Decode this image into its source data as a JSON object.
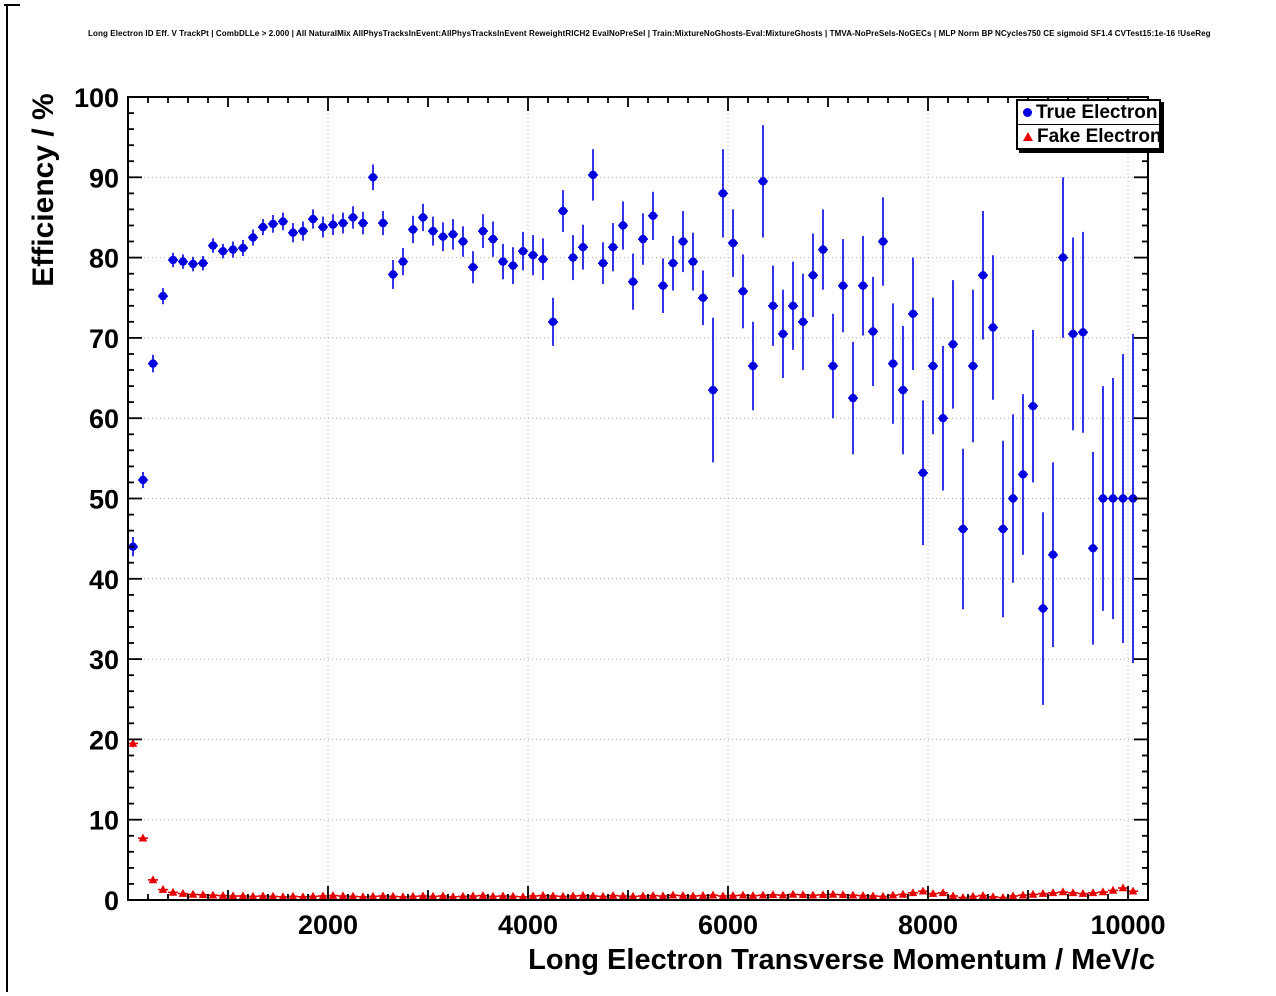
{
  "chart_data": {
    "type": "scatter",
    "title": "Long Electron ID Eff. V TrackPt | CombDLLe > 2.000 | All NaturalMix AllPhysTracksInEvent:AllPhysTracksInEvent ReweightRICH2 EvalNoPreSel | Train:MixtureNoGhosts-Eval:MixtureGhosts | TMVA-NoPreSels-NoGECs | MLP Norm BP NCycles750 CE sigmoid SF1.4 CVTest15:1e-16 !UseReg",
    "xlabel": "Long Electron Transverse Momentum / MeV/c",
    "ylabel": "Efficiency / %",
    "xlim": [
      0,
      10200
    ],
    "ylim": [
      0,
      100
    ],
    "grid": true,
    "legend_position": "top-right",
    "x_tick_values": [
      2000,
      4000,
      6000,
      8000,
      10000
    ],
    "x_tick_labels": [
      "2000",
      "4000",
      "6000",
      "8000",
      "10000"
    ],
    "x_minor_step": 200,
    "x_medium_step": 1000,
    "x_major_step": 2000,
    "y_tick_values": [
      0,
      10,
      20,
      30,
      40,
      50,
      60,
      70,
      80,
      90,
      100
    ],
    "y_tick_labels": [
      "0",
      "10",
      "20",
      "30",
      "40",
      "50",
      "60",
      "70",
      "80",
      "90",
      "100"
    ],
    "y_minor_step": 2,
    "series": [
      {
        "name": "True Electron",
        "marker": "circle",
        "color": "#0000e0",
        "ex": 50,
        "x": [
          50,
          150,
          250,
          350,
          450,
          550,
          650,
          750,
          850,
          950,
          1050,
          1150,
          1250,
          1350,
          1450,
          1550,
          1650,
          1750,
          1850,
          1950,
          2050,
          2150,
          2250,
          2350,
          2450,
          2550,
          2650,
          2750,
          2850,
          2950,
          3050,
          3150,
          3250,
          3350,
          3450,
          3550,
          3650,
          3750,
          3850,
          3950,
          4050,
          4150,
          4250,
          4350,
          4450,
          4550,
          4650,
          4750,
          4850,
          4950,
          5050,
          5150,
          5250,
          5350,
          5450,
          5550,
          5650,
          5750,
          5850,
          5950,
          6050,
          6150,
          6250,
          6350,
          6450,
          6550,
          6650,
          6750,
          6850,
          6950,
          7050,
          7150,
          7250,
          7350,
          7450,
          7550,
          7650,
          7750,
          7850,
          7950,
          8050,
          8150,
          8250,
          8350,
          8450,
          8550,
          8650,
          8750,
          8850,
          8950,
          9050,
          9150,
          9250,
          9350,
          9450,
          9550,
          9650,
          9750,
          9850,
          9950,
          10050
        ],
        "y": [
          44.0,
          52.3,
          66.8,
          75.2,
          79.7,
          79.5,
          79.2,
          79.3,
          81.5,
          80.8,
          81.0,
          81.2,
          82.5,
          83.8,
          84.2,
          84.5,
          83.1,
          83.3,
          84.8,
          83.8,
          84.1,
          84.3,
          85.0,
          84.3,
          90.0,
          84.3,
          77.9,
          79.5,
          83.5,
          85.0,
          83.3,
          82.6,
          82.9,
          82.0,
          78.8,
          83.3,
          82.3,
          79.5,
          79.0,
          80.8,
          80.3,
          79.8,
          72.0,
          85.8,
          80.0,
          81.3,
          90.3,
          79.3,
          81.3,
          84.0,
          77.0,
          82.3,
          85.2,
          76.5,
          79.3,
          82.0,
          79.5,
          75.0,
          63.5,
          88.0,
          81.8,
          75.8,
          66.5,
          89.5,
          74.0,
          70.5,
          74.0,
          72.0,
          77.8,
          81.0,
          66.5,
          76.5,
          62.5,
          76.5,
          70.8,
          82.0,
          66.8,
          63.5,
          73.0,
          53.2,
          66.5,
          60.0,
          69.2,
          46.2,
          66.5,
          77.8,
          71.3,
          46.2,
          50.0,
          53.0,
          61.5,
          36.3,
          43.0,
          80.0,
          70.5,
          70.7,
          43.8,
          50.0,
          50.0,
          50.0,
          50.0
        ],
        "ey": [
          1.2,
          1.0,
          1.1,
          1.0,
          0.9,
          0.9,
          0.9,
          0.9,
          0.9,
          0.9,
          1.0,
          1.0,
          1.0,
          1.0,
          1.1,
          1.1,
          1.2,
          1.2,
          1.2,
          1.3,
          1.3,
          1.3,
          1.4,
          1.4,
          1.6,
          1.5,
          1.8,
          1.7,
          1.7,
          1.7,
          1.8,
          1.8,
          1.9,
          1.9,
          2.0,
          2.1,
          2.2,
          2.2,
          2.3,
          2.4,
          2.5,
          2.6,
          3.0,
          2.6,
          2.8,
          2.8,
          3.2,
          2.6,
          3.0,
          3.0,
          3.5,
          3.2,
          3.0,
          3.4,
          3.4,
          3.8,
          3.6,
          3.4,
          9.0,
          5.5,
          4.2,
          4.6,
          5.5,
          7.0,
          5.0,
          5.5,
          5.5,
          6.0,
          5.2,
          5.0,
          6.5,
          5.8,
          7.0,
          6.2,
          6.8,
          5.5,
          7.5,
          8.0,
          7.0,
          9.0,
          8.5,
          9.0,
          8.0,
          10.0,
          9.5,
          8.0,
          9.0,
          11.0,
          10.5,
          10.0,
          9.5,
          12.0,
          11.5,
          10.0,
          12.0,
          12.5,
          12.0,
          14.0,
          15.0,
          18.0,
          20.5
        ]
      },
      {
        "name": "Fake Electron",
        "marker": "triangle",
        "color": "#e60000",
        "ex": 50,
        "x": [
          50,
          150,
          250,
          350,
          450,
          550,
          650,
          750,
          850,
          950,
          1050,
          1150,
          1250,
          1350,
          1450,
          1550,
          1650,
          1750,
          1850,
          1950,
          2050,
          2150,
          2250,
          2350,
          2450,
          2550,
          2650,
          2750,
          2850,
          2950,
          3050,
          3150,
          3250,
          3350,
          3450,
          3550,
          3650,
          3750,
          3850,
          3950,
          4050,
          4150,
          4250,
          4350,
          4450,
          4550,
          4650,
          4750,
          4850,
          4950,
          5050,
          5150,
          5250,
          5350,
          5450,
          5550,
          5650,
          5750,
          5850,
          5950,
          6050,
          6150,
          6250,
          6350,
          6450,
          6550,
          6650,
          6750,
          6850,
          6950,
          7050,
          7150,
          7250,
          7350,
          7450,
          7550,
          7650,
          7750,
          7850,
          7950,
          8050,
          8150,
          8250,
          8350,
          8450,
          8550,
          8650,
          8750,
          8850,
          8950,
          9050,
          9150,
          9250,
          9350,
          9450,
          9550,
          9650,
          9750,
          9850,
          9950,
          10050
        ],
        "y": [
          19.5,
          7.7,
          2.5,
          1.3,
          0.95,
          0.8,
          0.7,
          0.65,
          0.6,
          0.55,
          0.5,
          0.5,
          0.45,
          0.5,
          0.45,
          0.4,
          0.45,
          0.4,
          0.45,
          0.5,
          0.55,
          0.5,
          0.45,
          0.4,
          0.45,
          0.5,
          0.45,
          0.4,
          0.45,
          0.5,
          0.45,
          0.5,
          0.4,
          0.45,
          0.5,
          0.55,
          0.45,
          0.5,
          0.45,
          0.4,
          0.5,
          0.55,
          0.5,
          0.45,
          0.5,
          0.55,
          0.5,
          0.45,
          0.55,
          0.5,
          0.45,
          0.5,
          0.55,
          0.5,
          0.6,
          0.55,
          0.5,
          0.55,
          0.6,
          0.5,
          0.55,
          0.6,
          0.55,
          0.6,
          0.65,
          0.6,
          0.7,
          0.65,
          0.6,
          0.65,
          0.7,
          0.65,
          0.6,
          0.55,
          0.5,
          0.45,
          0.6,
          0.7,
          0.9,
          1.1,
          0.8,
          0.9,
          0.5,
          0.3,
          0.45,
          0.55,
          0.4,
          0.3,
          0.5,
          0.6,
          0.7,
          0.8,
          0.9,
          1.0,
          0.9,
          0.8,
          0.9,
          1.0,
          1.2,
          1.5,
          1.1
        ],
        "ey": [
          0.5,
          0.3,
          0.18,
          0.12,
          0.1,
          0.1,
          0.1,
          0.1,
          0.1,
          0.1,
          0.1,
          0.1,
          0.1,
          0.1,
          0.1,
          0.1,
          0.1,
          0.1,
          0.1,
          0.1,
          0.1,
          0.1,
          0.1,
          0.1,
          0.1,
          0.1,
          0.1,
          0.1,
          0.1,
          0.1,
          0.1,
          0.1,
          0.1,
          0.1,
          0.1,
          0.1,
          0.1,
          0.1,
          0.1,
          0.1,
          0.1,
          0.1,
          0.1,
          0.1,
          0.1,
          0.1,
          0.1,
          0.1,
          0.1,
          0.1,
          0.1,
          0.1,
          0.1,
          0.1,
          0.1,
          0.1,
          0.1,
          0.1,
          0.1,
          0.1,
          0.1,
          0.1,
          0.1,
          0.1,
          0.1,
          0.1,
          0.12,
          0.12,
          0.12,
          0.12,
          0.12,
          0.12,
          0.12,
          0.12,
          0.12,
          0.12,
          0.15,
          0.15,
          0.18,
          0.2,
          0.15,
          0.18,
          0.15,
          0.1,
          0.12,
          0.12,
          0.12,
          0.1,
          0.15,
          0.15,
          0.18,
          0.18,
          0.2,
          0.2,
          0.2,
          0.2,
          0.2,
          0.22,
          0.25,
          0.3,
          0.25
        ]
      }
    ]
  }
}
